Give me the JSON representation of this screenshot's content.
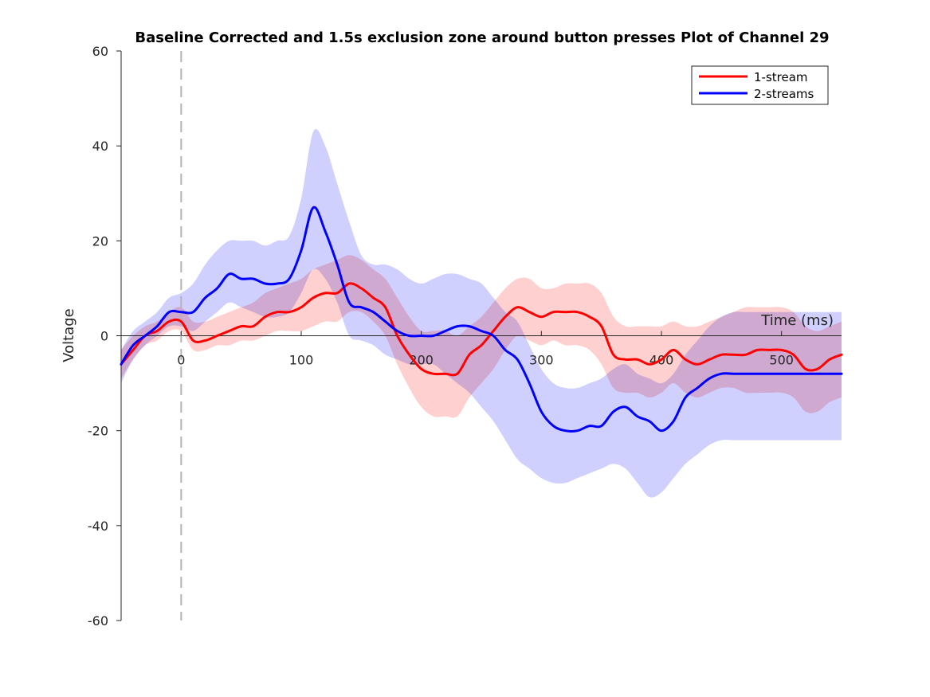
{
  "chart_data": {
    "type": "line",
    "title": "Baseline Corrected and 1.5s exclusion zone around button presses Plot of Channel 29",
    "xlabel": "Time (ms)",
    "ylabel": "Voltage",
    "xlim": [
      -50,
      550
    ],
    "ylim": [
      -60,
      60
    ],
    "xticks": [
      0,
      100,
      200,
      300,
      400,
      500
    ],
    "xtick_labels": [
      "0",
      "100",
      "200",
      "300",
      "400",
      "500"
    ],
    "yticks": [
      60,
      40,
      20,
      0,
      -20,
      -40,
      -60
    ],
    "ytick_labels": [
      "60",
      "40",
      "20",
      "0",
      "-20",
      "-40",
      "-60"
    ],
    "x_axis_at_y": 0,
    "stimulus_marker_x": 0,
    "legend_position": "top-right",
    "grid": false,
    "x": [
      -50,
      -40,
      -30,
      -20,
      -10,
      0,
      10,
      20,
      30,
      40,
      50,
      60,
      70,
      80,
      90,
      100,
      110,
      120,
      130,
      140,
      150,
      160,
      170,
      180,
      190,
      200,
      210,
      220,
      230,
      240,
      250,
      260,
      270,
      280,
      290,
      300,
      310,
      320,
      330,
      340,
      350,
      360,
      370,
      380,
      390,
      400,
      410,
      420,
      430,
      440,
      450,
      460,
      470,
      480,
      490,
      500,
      510,
      520,
      530,
      540,
      550
    ],
    "series": [
      {
        "name": "1-stream",
        "color": "#ff0000",
        "band_color": "#ffc8c8",
        "values": [
          -6,
          -3,
          0,
          1,
          3,
          3,
          -1,
          -1,
          0,
          1,
          2,
          2,
          4,
          5,
          5,
          6,
          8,
          9,
          9,
          11,
          10,
          8,
          6,
          0,
          -4,
          -7,
          -8,
          -8,
          -8,
          -4,
          -2,
          1,
          4,
          6,
          5,
          4,
          5,
          5,
          5,
          4,
          2,
          -4,
          -5,
          -5,
          -6,
          -5,
          -3,
          -5,
          -6,
          -5,
          -4,
          -4,
          -4,
          -3,
          -3,
          -3,
          -4,
          -7,
          -7,
          -5,
          -4
        ],
        "upper": [
          -3,
          0,
          2,
          3,
          5,
          6,
          3,
          3,
          4,
          5,
          6,
          7,
          9,
          10,
          11,
          12,
          14,
          15,
          16,
          17,
          16,
          14,
          12,
          8,
          4,
          1,
          1,
          1,
          0,
          2,
          4,
          7,
          10,
          12,
          12,
          10,
          10,
          11,
          11,
          11,
          9,
          4,
          2,
          2,
          2,
          2,
          3,
          2,
          2,
          3,
          4,
          5,
          6,
          6,
          6,
          6,
          5,
          2,
          1,
          2,
          3
        ],
        "lower": [
          -9,
          -5,
          -2,
          -1,
          1,
          1,
          -3,
          -3,
          -2,
          -2,
          -1,
          -1,
          0,
          1,
          1,
          1,
          2,
          3,
          3,
          5,
          5,
          3,
          0,
          -6,
          -11,
          -15,
          -17,
          -17,
          -17,
          -13,
          -10,
          -7,
          -3,
          0,
          -1,
          -2,
          -1,
          -2,
          -2,
          -3,
          -6,
          -11,
          -12,
          -12,
          -13,
          -12,
          -10,
          -12,
          -13,
          -12,
          -11,
          -11,
          -12,
          -12,
          -12,
          -12,
          -13,
          -16,
          -16,
          -14,
          -13
        ]
      },
      {
        "name": "2-streams",
        "color": "#0000ff",
        "band_color": "#c8c8ff",
        "values": [
          -6,
          -2,
          0,
          2,
          5,
          5,
          5,
          8,
          10,
          13,
          12,
          12,
          11,
          11,
          12,
          18,
          27,
          22,
          15,
          7,
          6,
          5,
          3,
          1,
          0,
          0,
          0,
          1,
          2,
          2,
          1,
          0,
          -3,
          -5,
          -10,
          -16,
          -19,
          -20,
          -20,
          -19,
          -19,
          -16,
          -15,
          -17,
          -18,
          -20,
          -18,
          -13,
          -11,
          -9,
          -8,
          -8,
          -8,
          -8,
          -8,
          -8,
          -8,
          -8,
          -8,
          -8,
          -8
        ],
        "upper": [
          -3,
          1,
          3,
          5,
          8,
          9,
          11,
          15,
          18,
          20,
          20,
          20,
          19,
          20,
          21,
          29,
          43,
          40,
          32,
          24,
          17,
          15,
          15,
          14,
          12,
          11,
          12,
          13,
          13,
          12,
          11,
          8,
          5,
          3,
          -2,
          -7,
          -10,
          -11,
          -11,
          -10,
          -9,
          -7,
          -6,
          -8,
          -9,
          -10,
          -8,
          -4,
          -1,
          2,
          4,
          5,
          5,
          5,
          5,
          5,
          5,
          5,
          5,
          5,
          5
        ],
        "lower": [
          -10,
          -5,
          -2,
          0,
          2,
          2,
          1,
          3,
          5,
          7,
          6,
          5,
          4,
          4,
          5,
          9,
          14,
          12,
          7,
          0,
          -1,
          -2,
          -4,
          -5,
          -6,
          -6,
          -6,
          -8,
          -10,
          -12,
          -15,
          -18,
          -22,
          -26,
          -28,
          -30,
          -31,
          -31,
          -30,
          -29,
          -28,
          -27,
          -28,
          -31,
          -34,
          -33,
          -30,
          -27,
          -25,
          -23,
          -22,
          -22,
          -22,
          -22,
          -22,
          -22,
          -22,
          -22,
          -22,
          -22,
          -22
        ]
      }
    ]
  }
}
